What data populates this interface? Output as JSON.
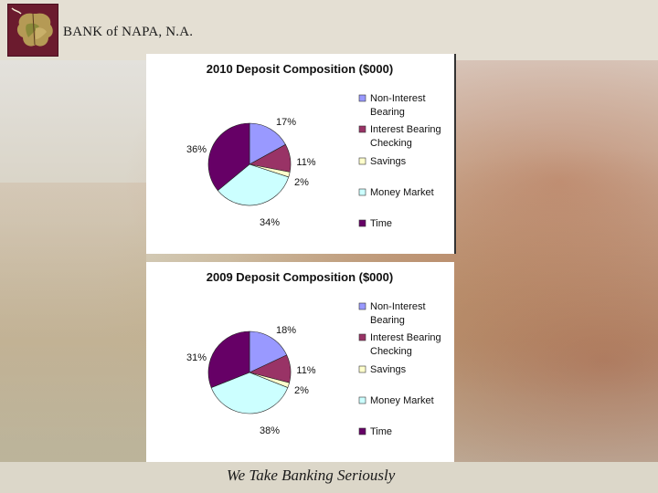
{
  "header": {
    "bank_name": "BANK of NAPA, N.A."
  },
  "footer": {
    "tagline": "We Take Banking Seriously"
  },
  "chart_data": [
    {
      "type": "pie",
      "title": "2010 Deposit Composition ($000)",
      "slices": [
        {
          "name": "Non-Interest Bearing",
          "name_lines": [
            "Non-Interest",
            "Bearing"
          ],
          "value": 17,
          "label": "17%",
          "color": "#9999ff"
        },
        {
          "name": "Interest Bearing Checking",
          "name_lines": [
            "Interest Bearing",
            "Checking"
          ],
          "value": 11,
          "label": "11%",
          "color": "#993366"
        },
        {
          "name": "Savings",
          "name_lines": [
            "Savings"
          ],
          "value": 2,
          "label": "2%",
          "color": "#ffffcc"
        },
        {
          "name": "Money Market",
          "name_lines": [
            "Money Market"
          ],
          "value": 34,
          "label": "34%",
          "color": "#ccffff"
        },
        {
          "name": "Time",
          "name_lines": [
            "Time"
          ],
          "value": 36,
          "label": "36%",
          "color": "#660066"
        }
      ],
      "legend_position": "right"
    },
    {
      "type": "pie",
      "title": "2009 Deposit Composition ($000)",
      "slices": [
        {
          "name": "Non-Interest Bearing",
          "name_lines": [
            "Non-Interest",
            "Bearing"
          ],
          "value": 18,
          "label": "18%",
          "color": "#9999ff"
        },
        {
          "name": "Interest Bearing Checking",
          "name_lines": [
            "Interest Bearing",
            "Checking"
          ],
          "value": 11,
          "label": "11%",
          "color": "#993366"
        },
        {
          "name": "Savings",
          "name_lines": [
            "Savings"
          ],
          "value": 2,
          "label": "2%",
          "color": "#ffffcc"
        },
        {
          "name": "Money Market",
          "name_lines": [
            "Money Market"
          ],
          "value": 38,
          "label": "38%",
          "color": "#ccffff"
        },
        {
          "name": "Time",
          "name_lines": [
            "Time"
          ],
          "value": 31,
          "label": "31%",
          "color": "#660066"
        }
      ],
      "legend_position": "right"
    }
  ]
}
